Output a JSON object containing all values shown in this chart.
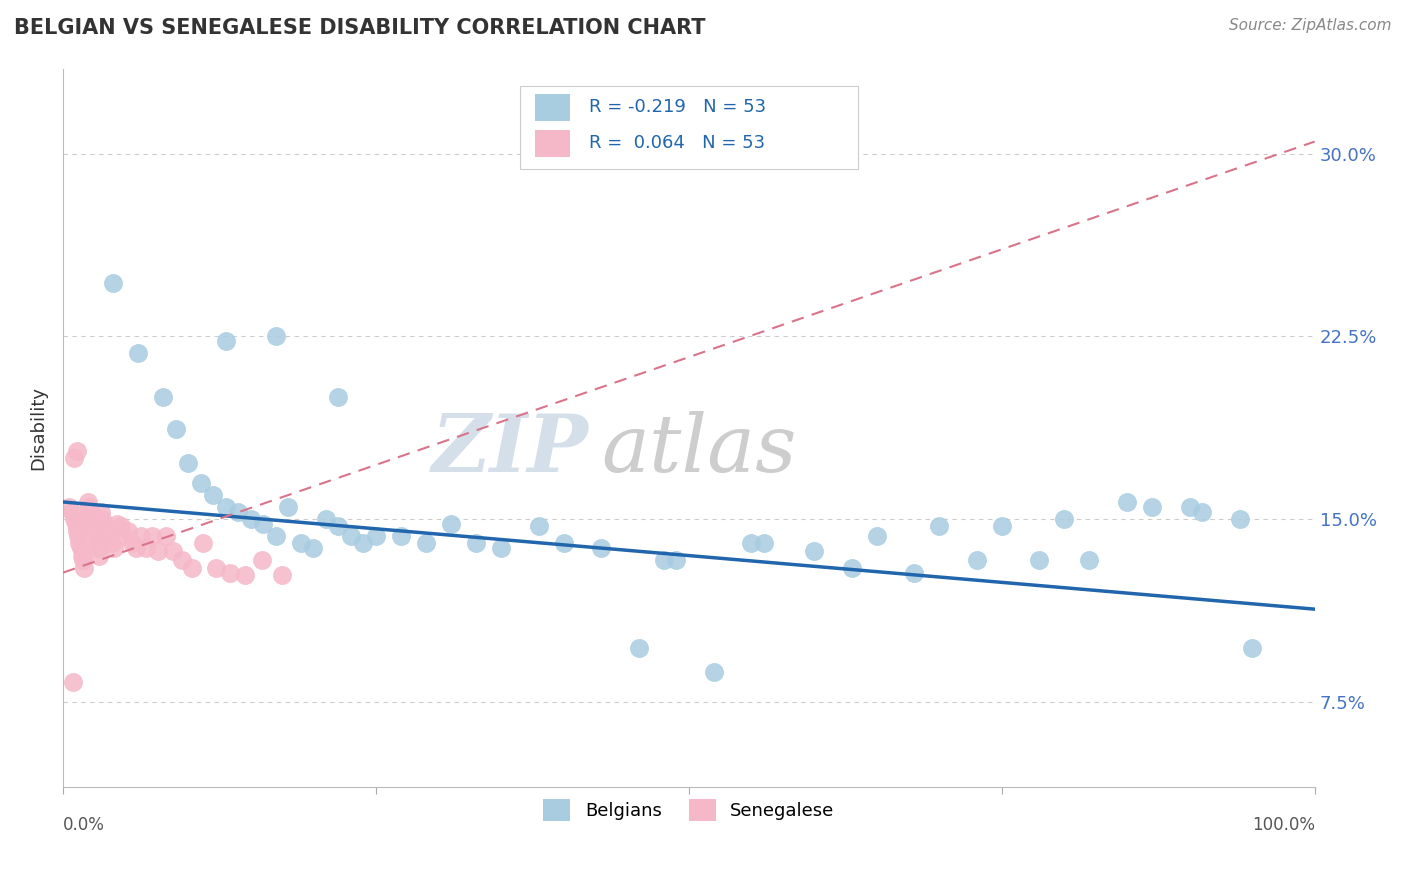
{
  "title": "BELGIAN VS SENEGALESE DISABILITY CORRELATION CHART",
  "source": "Source: ZipAtlas.com",
  "ylabel": "Disability",
  "background_color": "#ffffff",
  "belgian_color": "#a8cce0",
  "senegalese_color": "#f5b8c8",
  "belgian_line_color": "#2166ac",
  "senegalese_line_color": "#d9748a",
  "grid_color": "#cccccc",
  "ytick_positions": [
    0.075,
    0.15,
    0.225,
    0.3
  ],
  "ytick_labels": [
    "7.5%",
    "15.0%",
    "22.5%",
    "30.0%"
  ],
  "ylim": [
    0.04,
    0.335
  ],
  "xlim": [
    0.0,
    1.0
  ],
  "R_belgian": -0.219,
  "N_belgian": 53,
  "R_senegalese": 0.064,
  "N_senegalese": 53,
  "bel_line_x0": 0.0,
  "bel_line_y0": 0.157,
  "bel_line_x1": 1.0,
  "bel_line_y1": 0.113,
  "sen_line_x0": 0.0,
  "sen_line_y0": 0.128,
  "sen_line_x1": 1.0,
  "sen_line_y1": 0.305,
  "belgian_x": [
    0.04,
    0.06,
    0.08,
    0.09,
    0.1,
    0.11,
    0.12,
    0.13,
    0.14,
    0.15,
    0.16,
    0.17,
    0.18,
    0.19,
    0.2,
    0.21,
    0.22,
    0.23,
    0.24,
    0.25,
    0.27,
    0.29,
    0.31,
    0.33,
    0.35,
    0.38,
    0.4,
    0.43,
    0.46,
    0.49,
    0.52,
    0.56,
    0.6,
    0.65,
    0.7,
    0.75,
    0.8,
    0.85,
    0.9,
    0.95,
    0.48,
    0.55,
    0.63,
    0.68,
    0.73,
    0.78,
    0.82,
    0.87,
    0.91,
    0.94,
    0.13,
    0.17,
    0.22
  ],
  "belgian_y": [
    0.247,
    0.218,
    0.2,
    0.187,
    0.173,
    0.165,
    0.16,
    0.155,
    0.153,
    0.15,
    0.148,
    0.143,
    0.155,
    0.14,
    0.138,
    0.15,
    0.147,
    0.143,
    0.14,
    0.143,
    0.143,
    0.14,
    0.148,
    0.14,
    0.138,
    0.147,
    0.14,
    0.138,
    0.097,
    0.133,
    0.087,
    0.14,
    0.137,
    0.143,
    0.147,
    0.147,
    0.15,
    0.157,
    0.155,
    0.097,
    0.133,
    0.14,
    0.13,
    0.128,
    0.133,
    0.133,
    0.133,
    0.155,
    0.153,
    0.15,
    0.223,
    0.225,
    0.2
  ],
  "senegalese_x": [
    0.005,
    0.007,
    0.009,
    0.01,
    0.011,
    0.012,
    0.013,
    0.014,
    0.015,
    0.016,
    0.017,
    0.018,
    0.019,
    0.02,
    0.021,
    0.022,
    0.023,
    0.024,
    0.025,
    0.026,
    0.027,
    0.028,
    0.029,
    0.03,
    0.031,
    0.033,
    0.035,
    0.037,
    0.039,
    0.041,
    0.043,
    0.046,
    0.049,
    0.052,
    0.055,
    0.058,
    0.062,
    0.066,
    0.071,
    0.076,
    0.082,
    0.088,
    0.095,
    0.103,
    0.112,
    0.122,
    0.133,
    0.145,
    0.159,
    0.175,
    0.009,
    0.011,
    0.008
  ],
  "senegalese_y": [
    0.155,
    0.153,
    0.15,
    0.148,
    0.145,
    0.143,
    0.14,
    0.138,
    0.135,
    0.133,
    0.13,
    0.148,
    0.153,
    0.157,
    0.155,
    0.153,
    0.15,
    0.148,
    0.145,
    0.143,
    0.14,
    0.138,
    0.135,
    0.153,
    0.15,
    0.148,
    0.145,
    0.143,
    0.14,
    0.138,
    0.148,
    0.147,
    0.143,
    0.145,
    0.14,
    0.138,
    0.143,
    0.138,
    0.143,
    0.137,
    0.143,
    0.137,
    0.133,
    0.13,
    0.14,
    0.13,
    0.128,
    0.127,
    0.133,
    0.127,
    0.175,
    0.178,
    0.083
  ]
}
